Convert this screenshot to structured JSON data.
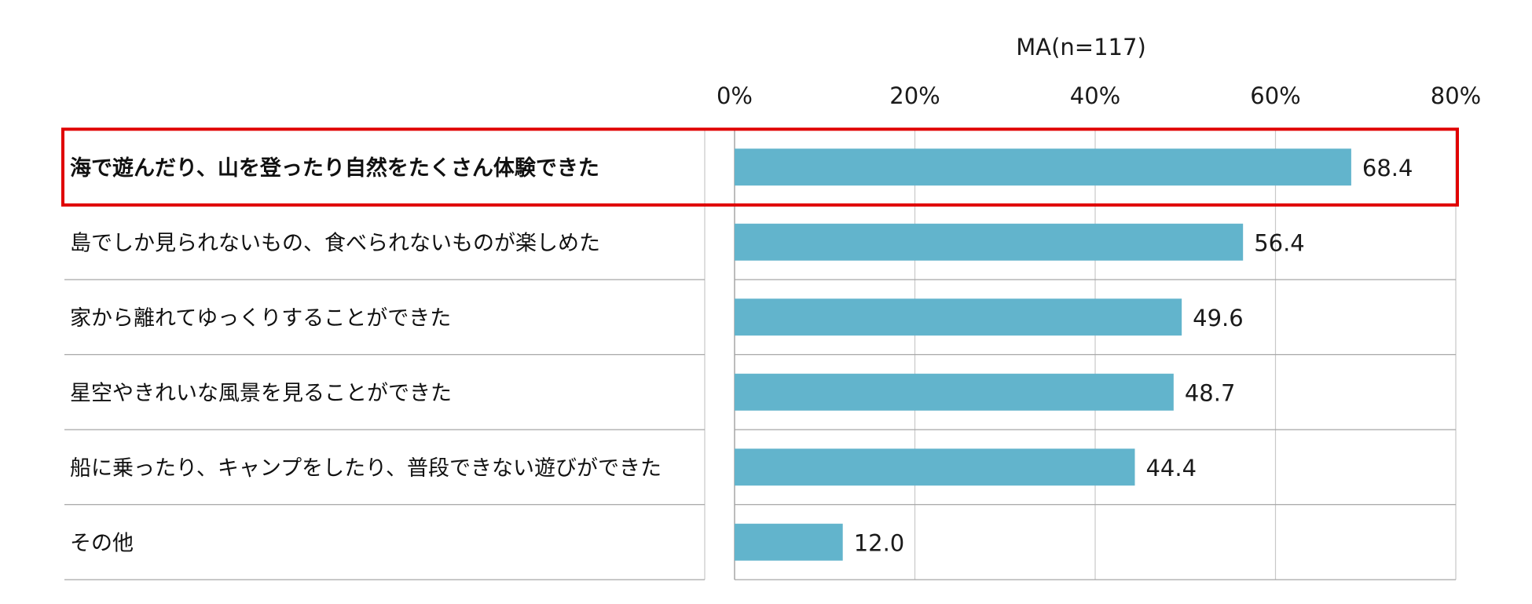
{
  "chart_data": {
    "type": "bar",
    "orientation": "horizontal",
    "note": "MA(n=117)",
    "categories": [
      "海で遊んだり、山を登ったり自然をたくさん体験できた",
      "島でしか見られないもの、食べられないものが楽しめた",
      "家から離れてゆっくりすることができた",
      "星空やきれいな風景を見ることができた",
      "船に乗ったり、キャンプをしたり、普段できない遊びができた",
      "その他"
    ],
    "values": [
      68.4,
      56.4,
      49.6,
      48.7,
      44.4,
      12.0
    ],
    "value_labels": [
      "68.4",
      "56.4",
      "49.6",
      "48.7",
      "44.4",
      "12.0"
    ],
    "xlim": [
      0,
      80
    ],
    "x_ticks": [
      0,
      20,
      40,
      60,
      80
    ],
    "x_tick_labels": [
      "0%",
      "20%",
      "40%",
      "60%",
      "80%"
    ],
    "x_axis_position": "top",
    "grid": true,
    "highlighted_category_index": 0,
    "colors": {
      "bar": "#62b4cc",
      "highlight_frame": "#e00000",
      "grid": "#c8c8c8",
      "row_divider": "#a6a6a6"
    }
  }
}
